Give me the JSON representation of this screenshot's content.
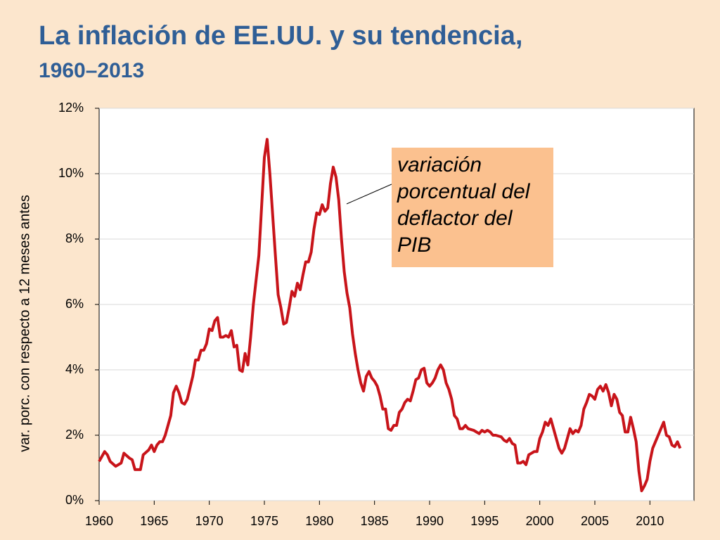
{
  "chart_data": {
    "type": "line",
    "title": "La inflación de EE.UU. y su tendencia,",
    "subtitle": "1960–2013",
    "y_label": "var. porc. con respecto a 12 meses antes",
    "annotation": "variación porcentual del deflactor del PIB",
    "xlim": [
      1960,
      2014
    ],
    "xticks": [
      1960,
      1965,
      1970,
      1975,
      1980,
      1985,
      1990,
      1995,
      2000,
      2005,
      2010
    ],
    "ylim": [
      0,
      12
    ],
    "yticks": [
      {
        "value": 0,
        "label": "0%"
      },
      {
        "value": 2,
        "label": "2%"
      },
      {
        "value": 4,
        "label": "4%"
      },
      {
        "value": 6,
        "label": "6%"
      },
      {
        "value": 8,
        "label": "8%"
      },
      {
        "value": 10,
        "label": "10%"
      },
      {
        "value": 12,
        "label": "12%"
      }
    ],
    "grid": true,
    "color": "#c8141a",
    "x": [
      1960,
      1960.5,
      1960.75,
      1961,
      1961.5,
      1962,
      1962.25,
      1962.75,
      1963,
      1963.25,
      1963.75,
      1964,
      1964.5,
      1964.75,
      1965,
      1965.25,
      1965.5,
      1965.75,
      1966,
      1966.5,
      1966.75,
      1967,
      1967.25,
      1967.5,
      1967.75,
      1968,
      1968.5,
      1968.75,
      1969,
      1969.25,
      1969.5,
      1969.75,
      1970,
      1970.25,
      1970.5,
      1970.75,
      1971,
      1971.25,
      1971.5,
      1971.75,
      1972,
      1972.25,
      1972.5,
      1972.75,
      1973,
      1973.25,
      1973.5,
      1973.75,
      1974,
      1974.5,
      1975,
      1975.25,
      1975.5,
      1976,
      1976.25,
      1976.5,
      1976.75,
      1977,
      1977.25,
      1977.5,
      1977.75,
      1978,
      1978.25,
      1978.5,
      1978.75,
      1979,
      1979.25,
      1979.5,
      1979.75,
      1980,
      1980.25,
      1980.5,
      1980.75,
      1981,
      1981.25,
      1981.5,
      1981.75,
      1982,
      1982.25,
      1982.5,
      1982.75,
      1983,
      1983.25,
      1983.5,
      1983.75,
      1984,
      1984.25,
      1984.5,
      1984.75,
      1985,
      1985.25,
      1985.5,
      1985.75,
      1986,
      1986.25,
      1986.5,
      1986.75,
      1987,
      1987.25,
      1987.5,
      1987.75,
      1988,
      1988.25,
      1988.5,
      1988.75,
      1989,
      1989.25,
      1989.5,
      1989.75,
      1990,
      1990.25,
      1990.5,
      1990.75,
      1991,
      1991.25,
      1991.5,
      1991.75,
      1992,
      1992.25,
      1992.5,
      1992.75,
      1993,
      1993.25,
      1993.5,
      1994,
      1994.25,
      1994.5,
      1994.75,
      1995,
      1995.25,
      1995.5,
      1995.75,
      1996,
      1996.5,
      1996.75,
      1997,
      1997.25,
      1997.5,
      1997.75,
      1998,
      1998.25,
      1998.5,
      1998.75,
      1999,
      1999.25,
      1999.5,
      1999.75,
      2000,
      2000.25,
      2000.5,
      2000.75,
      2001,
      2001.25,
      2001.5,
      2001.75,
      2002,
      2002.25,
      2002.5,
      2002.75,
      2003,
      2003.25,
      2003.5,
      2003.75,
      2004,
      2004.25,
      2004.5,
      2004.75,
      2005,
      2005.25,
      2005.5,
      2005.75,
      2006,
      2006.25,
      2006.5,
      2006.75,
      2007,
      2007.25,
      2007.5,
      2007.75,
      2008,
      2008.25,
      2008.5,
      2008.75,
      2009,
      2009.25,
      2009.5,
      2009.75,
      2010,
      2010.25,
      2010.5,
      2010.75,
      2011,
      2011.25,
      2011.5,
      2011.75,
      2012,
      2012.25,
      2012.5,
      2012.75
    ],
    "values": [
      1.2,
      1.5,
      1.4,
      1.2,
      1.05,
      1.15,
      1.45,
      1.3,
      1.25,
      0.95,
      0.95,
      1.4,
      1.55,
      1.7,
      1.5,
      1.7,
      1.8,
      1.8,
      2.0,
      2.6,
      3.3,
      3.5,
      3.3,
      3.0,
      2.95,
      3.1,
      3.8,
      4.3,
      4.3,
      4.6,
      4.6,
      4.8,
      5.25,
      5.2,
      5.5,
      5.6,
      5.0,
      5.0,
      5.05,
      5.0,
      5.2,
      4.7,
      4.75,
      4.0,
      3.95,
      4.5,
      4.15,
      5.0,
      6.0,
      7.5,
      10.5,
      11.05,
      10.0,
      7.5,
      6.3,
      5.9,
      5.4,
      5.45,
      5.9,
      6.4,
      6.25,
      6.65,
      6.45,
      6.9,
      7.3,
      7.3,
      7.6,
      8.3,
      8.8,
      8.75,
      9.05,
      8.85,
      8.95,
      9.7,
      10.2,
      9.9,
      9.2,
      8.0,
      7.0,
      6.35,
      5.9,
      5.1,
      4.5,
      4.0,
      3.6,
      3.35,
      3.8,
      3.95,
      3.75,
      3.65,
      3.5,
      3.2,
      2.8,
      2.8,
      2.2,
      2.15,
      2.3,
      2.3,
      2.7,
      2.8,
      3.0,
      3.1,
      3.05,
      3.35,
      3.7,
      3.75,
      4.0,
      4.05,
      3.6,
      3.5,
      3.6,
      3.75,
      4.0,
      4.15,
      4.0,
      3.6,
      3.4,
      3.1,
      2.6,
      2.5,
      2.2,
      2.2,
      2.3,
      2.2,
      2.15,
      2.1,
      2.05,
      2.15,
      2.1,
      2.15,
      2.1,
      2.0,
      2.0,
      1.95,
      1.85,
      1.8,
      1.9,
      1.75,
      1.7,
      1.15,
      1.15,
      1.2,
      1.1,
      1.4,
      1.45,
      1.5,
      1.5,
      1.9,
      2.1,
      2.4,
      2.3,
      2.5,
      2.2,
      1.9,
      1.6,
      1.45,
      1.6,
      1.9,
      2.2,
      2.05,
      2.15,
      2.1,
      2.3,
      2.8,
      3.0,
      3.25,
      3.2,
      3.1,
      3.4,
      3.5,
      3.35,
      3.55,
      3.3,
      2.9,
      3.25,
      3.1,
      2.7,
      2.6,
      2.1,
      2.1,
      2.55,
      2.2,
      1.8,
      0.9,
      0.3,
      0.45,
      0.65,
      1.2,
      1.6,
      1.8,
      2.0,
      2.2,
      2.4,
      2.0,
      1.95,
      1.7,
      1.65,
      1.8,
      1.6
    ]
  }
}
